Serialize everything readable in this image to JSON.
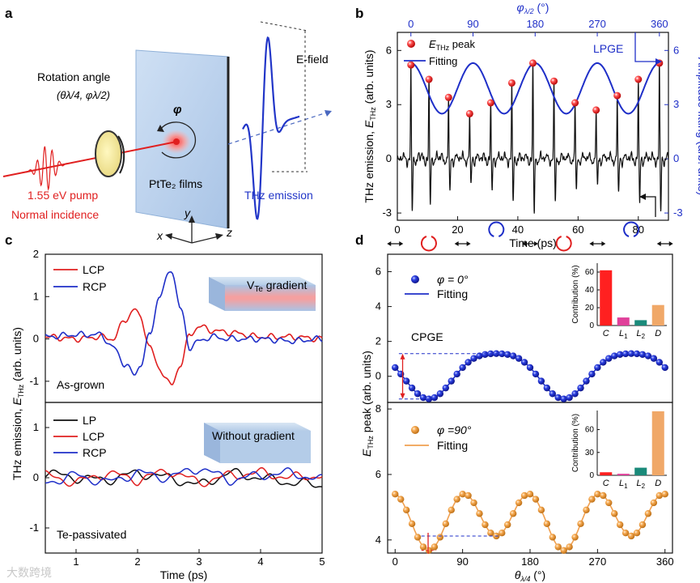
{
  "panels": {
    "a": {
      "letter": "a",
      "rotation_title": "Rotation angle",
      "rotation_angles": "(θλ/4, φλ/2)",
      "phi_symbol": "φ",
      "film_label": "PtTe₂ films",
      "efield_label": "E-field",
      "pump_label": "1.55 eV pump",
      "incidence_label": "Normal incidence",
      "thz_label": "THz emission",
      "axis_x": "x",
      "axis_y": "y",
      "axis_z": "z"
    },
    "b": {
      "letter": "b",
      "legend_peak": "E_THz peak",
      "legend_fit": "Fitting",
      "lpge_label": "LPGE"
    },
    "c": {
      "letter": "c",
      "top_legend": [
        "LCP",
        "RCP"
      ],
      "bottom_legend": [
        "LP",
        "LCP",
        "RCP"
      ],
      "top_inset": "V_Te gradient",
      "bottom_inset": "Without gradient",
      "top_sample": "As-grown",
      "bottom_sample": "Te-passivated"
    },
    "d": {
      "letter": "d",
      "top_legend_phi": "φ = 0°",
      "top_legend_fit": "Fitting",
      "bottom_legend_phi": "φ =90°",
      "bottom_legend_fit": "Fitting",
      "cpge_label": "CPGE",
      "inset_ylabel": "Contribution (%)",
      "inset_categories": [
        "C",
        "L1",
        "L2",
        "D"
      ]
    }
  },
  "watermark": "大数跨境",
  "colors": {
    "red": "#e02020",
    "blue": "#1f2fc8",
    "black": "#111111",
    "orange": "#f0a050",
    "bar_c": "#ff2020",
    "bar_l1": "#e0409a",
    "bar_l2": "#1a8a7a",
    "bar_d": "#f0a868"
  },
  "chart_data": [
    {
      "panel": "b",
      "type": "line",
      "xlabel": "Time (ps)",
      "ylabel": "THz emission, E_THz (arb. units)",
      "ylabel_right": "Amplitude fitting (arb. units)",
      "xlabel_top": "φλ/2 (°)",
      "xlim": [
        0,
        90
      ],
      "ylim": [
        -3.4,
        7.0
      ],
      "xticks": [
        0,
        20,
        40,
        60,
        80
      ],
      "yticks": [
        -3,
        0,
        3,
        6
      ],
      "xticks_top": [
        0,
        90,
        180,
        270,
        360
      ],
      "yticks_right": [
        -3,
        0,
        3,
        6
      ],
      "pulse_times": [
        4.5,
        10.5,
        17,
        24,
        31,
        38,
        45,
        52,
        59,
        66,
        73,
        80,
        87
      ],
      "peak_values": [
        5.2,
        4.4,
        3.4,
        2.5,
        3.1,
        4.2,
        5.3,
        4.3,
        3.1,
        2.7,
        3.5,
        4.4,
        5.3
      ],
      "series": [
        {
          "name": "E_THz peak",
          "x": [
            4.5,
            10.5,
            17,
            24,
            31,
            38,
            45,
            52,
            59,
            66,
            73,
            80,
            87
          ],
          "y": [
            5.2,
            4.4,
            3.4,
            2.5,
            3.1,
            4.2,
            5.3,
            4.3,
            3.1,
            2.7,
            3.5,
            4.4,
            5.3
          ]
        },
        {
          "name": "Fitting",
          "model": "3.9 + 1.35*cos(4*(phi-0))",
          "phi_range": [
            0,
            360
          ]
        }
      ]
    },
    {
      "panel": "c-top",
      "type": "line",
      "ylabel": "THz emission, E_THz (arb. units)",
      "xlim": [
        0.5,
        5
      ],
      "ylim": [
        -1.5,
        2
      ],
      "yticks": [
        -1,
        0,
        1,
        2
      ],
      "series": [
        {
          "name": "LCP",
          "x": [
            0.5,
            1.0,
            1.4,
            1.6,
            1.8,
            1.95,
            2.05,
            2.2,
            2.35,
            2.55,
            2.7,
            2.85,
            3.0,
            3.2,
            3.5,
            4.0,
            4.5,
            5.0
          ],
          "y": [
            0.05,
            0.0,
            0.05,
            0.0,
            0.45,
            0.7,
            0.5,
            -0.2,
            -0.7,
            -1.1,
            -0.6,
            0.1,
            0.3,
            0.2,
            0.15,
            0.05,
            0.05,
            0.0
          ]
        },
        {
          "name": "RCP",
          "x": [
            0.5,
            1.0,
            1.4,
            1.6,
            1.8,
            1.95,
            2.05,
            2.2,
            2.35,
            2.55,
            2.7,
            2.85,
            3.0,
            3.2,
            3.5,
            4.0,
            4.5,
            5.0
          ],
          "y": [
            0.05,
            0.1,
            0.1,
            -0.2,
            -0.6,
            -0.85,
            -0.6,
            0.1,
            1.0,
            1.65,
            0.7,
            -0.2,
            -0.05,
            0.05,
            0.0,
            0.0,
            -0.05,
            0.0
          ]
        }
      ]
    },
    {
      "panel": "c-bottom",
      "type": "line",
      "xlabel": "Time (ps)",
      "xlim": [
        0.5,
        5
      ],
      "xticks": [
        1,
        2,
        3,
        4,
        5
      ],
      "ylim": [
        -1.5,
        1.5
      ],
      "yticks": [
        -1,
        0,
        1
      ],
      "series": [
        {
          "name": "LP",
          "x": [
            0.5,
            1.0,
            1.5,
            2.0,
            2.5,
            3.0,
            3.5,
            4.0,
            4.5,
            5.0
          ],
          "y": [
            0.1,
            0.0,
            -0.05,
            0.1,
            0.0,
            -0.15,
            0.1,
            0.0,
            -0.1,
            -0.15
          ]
        },
        {
          "name": "LCP",
          "x": [
            0.5,
            1.0,
            1.5,
            2.0,
            2.5,
            3.0,
            3.5,
            4.0,
            4.5,
            5.0
          ],
          "y": [
            0.05,
            -0.1,
            0.1,
            -0.05,
            0.15,
            -0.1,
            0.05,
            0.1,
            0.0,
            0.05
          ]
        },
        {
          "name": "RCP",
          "x": [
            0.5,
            1.0,
            1.5,
            2.0,
            2.5,
            3.0,
            3.5,
            4.0,
            4.5,
            5.0
          ],
          "y": [
            -0.1,
            0.05,
            -0.1,
            0.1,
            0.0,
            0.2,
            -0.05,
            0.05,
            0.1,
            -0.05
          ]
        }
      ]
    },
    {
      "panel": "d-top",
      "type": "scatter",
      "ylabel": "E_THz peak (arb. units)",
      "xlim": [
        -10,
        370
      ],
      "ylim": [
        -1.5,
        7
      ],
      "yticks": [
        0,
        2,
        4,
        6
      ],
      "series": [
        {
          "name": "φ = 0°",
          "model": "0.3 + 1.35*sin(2θ - 90°)... cpge",
          "x_step": 7.5
        },
        {
          "name": "Fitting"
        }
      ],
      "inset": {
        "type": "bar",
        "ylabel": "Contribution (%)",
        "categories": [
          "C",
          "L1",
          "L2",
          "D"
        ],
        "values": [
          62,
          9,
          6,
          23
        ],
        "ylim": [
          0,
          70
        ],
        "yticks": [
          0,
          20,
          40,
          60
        ]
      }
    },
    {
      "panel": "d-bottom",
      "type": "scatter",
      "xlabel": "θλ/4 (°)",
      "xlim": [
        -10,
        370
      ],
      "xticks": [
        0,
        90,
        180,
        270,
        360
      ],
      "ylim": [
        3.6,
        8.2
      ],
      "yticks": [
        4,
        6,
        8
      ],
      "series": [
        {
          "name": "φ =90°",
          "x_step": 7.5
        },
        {
          "name": "Fitting"
        }
      ],
      "inset": {
        "type": "bar",
        "ylabel": "Contribution (%)",
        "categories": [
          "C",
          "L1",
          "L2",
          "D"
        ],
        "values": [
          4,
          2,
          10,
          84
        ],
        "ylim": [
          0,
          85
        ],
        "yticks": [
          0,
          30,
          60
        ]
      }
    }
  ]
}
